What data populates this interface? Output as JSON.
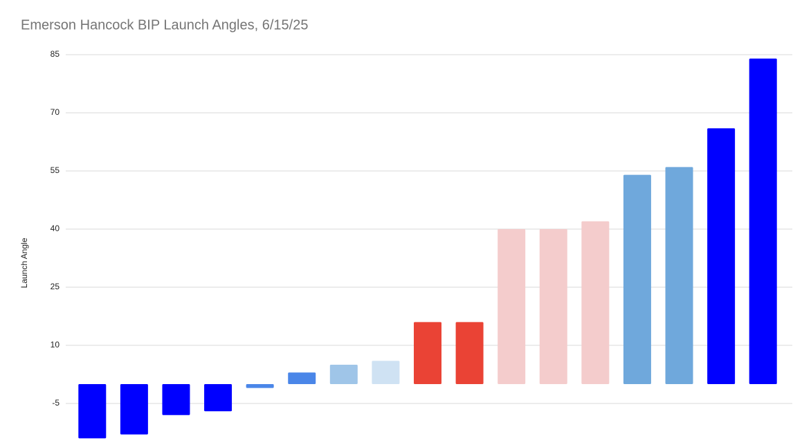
{
  "chart_data": {
    "type": "bar",
    "title": "Emerson Hancock BIP Launch Angles, 6/15/25",
    "y_label": "Launch Angle",
    "values": [
      -14,
      -13,
      -8,
      -7,
      -1,
      3,
      5,
      6,
      16,
      16,
      40,
      40,
      42,
      54,
      56,
      66,
      84
    ],
    "colors": [
      "#0000ff",
      "#0000ff",
      "#0000ff",
      "#0000ff",
      "#4a86e8",
      "#4a86e8",
      "#9fc5e8",
      "#cfe2f3",
      "#ea4335",
      "#ea4335",
      "#f4cccc",
      "#f4cccc",
      "#f4cccc",
      "#6fa8dc",
      "#6fa8dc",
      "#0000ff",
      "#0000ff"
    ],
    "ylim": [
      -15,
      85
    ],
    "yticks": [
      -5,
      10,
      25,
      40,
      55,
      70,
      85
    ],
    "grid": true
  }
}
